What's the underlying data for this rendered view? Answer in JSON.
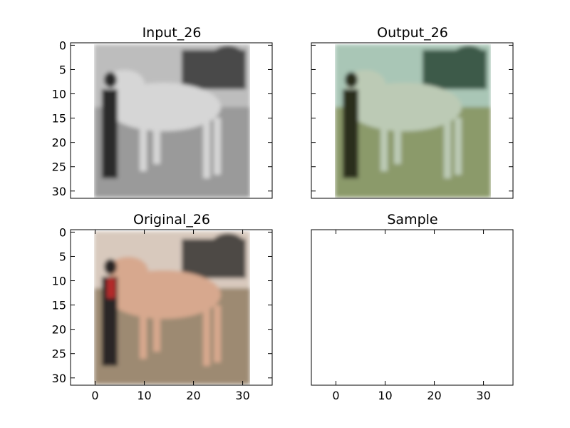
{
  "chart_data": [
    {
      "type": "image",
      "title": "Input_26",
      "image_content": "grayscale 32x32 photo of a horse with a person standing at left",
      "colors": {
        "sky": "#bdbdbd",
        "horse": "#d6d6d6",
        "ground": "#9a9a9a",
        "person": "#2b2b2b",
        "trees": "#4a4a4a"
      },
      "xlim": [
        -5,
        36
      ],
      "ylim": [
        31.5,
        -0.5
      ],
      "yticks": [
        0,
        5,
        10,
        15,
        20,
        25,
        30
      ],
      "xticks": [],
      "xticklabels_visible": false,
      "yticklabels_visible": true
    },
    {
      "type": "image",
      "title": "Output_26",
      "image_content": "colorized 32x32 photo of a horse with a person standing at left, greenish tint",
      "colors": {
        "sky": "#a9c6b6",
        "horse": "#bccab5",
        "ground": "#8b9a6a",
        "person": "#2c2f1f",
        "trees": "#3e5a4a"
      },
      "xlim": [
        -5,
        36
      ],
      "ylim": [
        31.5,
        -0.5
      ],
      "yticks": [
        0,
        5,
        10,
        15,
        20,
        25,
        30
      ],
      "xticks": [],
      "xticklabels_visible": false,
      "yticklabels_visible": false
    },
    {
      "type": "image",
      "title": "Original_26",
      "image_content": "color 32x32 photo of a tan horse with a person in red at left",
      "colors": {
        "sky": "#d8c9bd",
        "horse": "#d7a88e",
        "ground": "#9d8a72",
        "person": "#2a2626",
        "accent": "#b42a2a",
        "trees": "#4d4a45"
      },
      "xlim": [
        -5,
        36
      ],
      "ylim": [
        31.5,
        -0.5
      ],
      "yticks": [
        0,
        5,
        10,
        15,
        20,
        25,
        30
      ],
      "xticks": [
        0,
        10,
        20,
        30
      ],
      "xticklabels_visible": true,
      "yticklabels_visible": true
    },
    {
      "type": "image",
      "title": "Sample",
      "image_content": "empty",
      "xlim": [
        -5,
        36
      ],
      "ylim": [
        31.5,
        -0.5
      ],
      "yticks": [],
      "xticks": [
        0,
        10,
        20,
        30
      ],
      "xticklabels_visible": true,
      "yticklabels_visible": false
    }
  ]
}
